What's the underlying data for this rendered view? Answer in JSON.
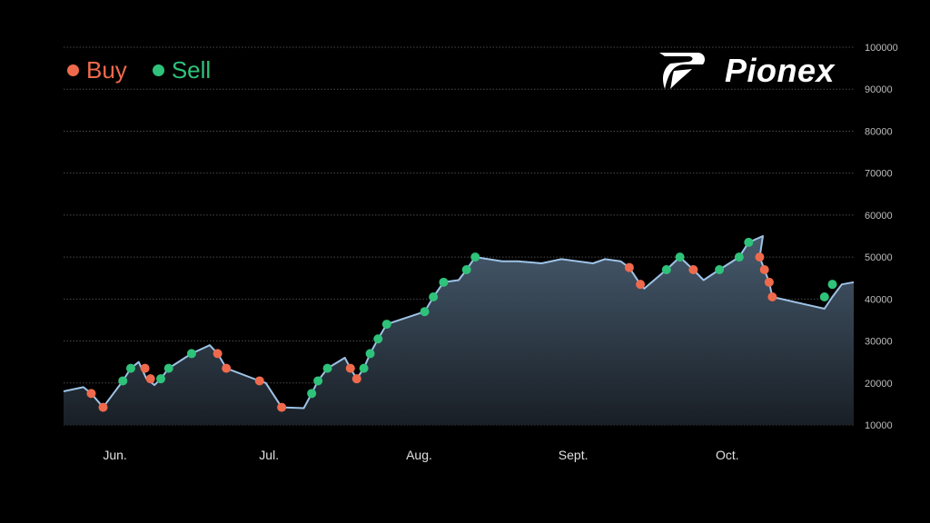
{
  "legend": {
    "buy_label": "Buy",
    "sell_label": "Sell",
    "buy_color": "#ef6a4c",
    "sell_color": "#2fc27a"
  },
  "brand": {
    "name": "Pionex",
    "mark_icon": "pionex-logo-icon"
  },
  "colors": {
    "line": "#9ec3e6",
    "grid": "#4a4a4a",
    "axis_text": "#bdbdbd"
  },
  "chart_data": {
    "type": "line",
    "ylim": [
      10000,
      100000
    ],
    "y_ticks": [
      10000,
      20000,
      30000,
      40000,
      50000,
      60000,
      70000,
      80000,
      90000,
      100000
    ],
    "x_tick_labels": [
      {
        "t": 6.5,
        "label": "Jun."
      },
      {
        "t": 26.0,
        "label": "Jul."
      },
      {
        "t": 45.0,
        "label": "Aug."
      },
      {
        "t": 64.5,
        "label": "Sept."
      },
      {
        "t": 84.0,
        "label": "Oct."
      }
    ],
    "xlim": [
      0,
      100
    ],
    "grid": true,
    "legend_position": "top-left",
    "series": [
      {
        "points": [
          [
            0,
            18000
          ],
          [
            2.5,
            19000
          ],
          [
            3.5,
            17500
          ],
          [
            5,
            14200
          ],
          [
            7.5,
            20500
          ],
          [
            8.5,
            23500
          ],
          [
            9.5,
            25000
          ],
          [
            10.5,
            21000
          ],
          [
            11.5,
            19500
          ],
          [
            12.3,
            21000
          ],
          [
            13.3,
            23500
          ],
          [
            16.2,
            27000
          ],
          [
            18.5,
            29000
          ],
          [
            19.5,
            27000
          ],
          [
            20.6,
            23500
          ],
          [
            24.8,
            20500
          ],
          [
            25.6,
            20000
          ],
          [
            27.6,
            14200
          ],
          [
            30.4,
            14000
          ],
          [
            31.4,
            17500
          ],
          [
            32.2,
            20500
          ],
          [
            33.4,
            23500
          ],
          [
            35.6,
            26000
          ],
          [
            36.3,
            23500
          ],
          [
            37.1,
            21000
          ],
          [
            38,
            23500
          ],
          [
            38.8,
            27000
          ],
          [
            39.8,
            30500
          ],
          [
            40.9,
            34000
          ],
          [
            45.7,
            37000
          ],
          [
            46.8,
            40500
          ],
          [
            48.1,
            44000
          ],
          [
            50,
            44500
          ],
          [
            51,
            47000
          ],
          [
            52.1,
            50000
          ],
          [
            55.5,
            49000
          ],
          [
            57.5,
            49000
          ],
          [
            60.5,
            48500
          ],
          [
            63,
            49500
          ],
          [
            67,
            48500
          ],
          [
            68.5,
            49500
          ],
          [
            70.5,
            49000
          ],
          [
            71.6,
            47500
          ],
          [
            73,
            43500
          ],
          [
            73.5,
            42500
          ],
          [
            76.3,
            47000
          ],
          [
            78,
            50000
          ],
          [
            79.7,
            47000
          ],
          [
            81,
            44500
          ],
          [
            83,
            47000
          ],
          [
            85.5,
            50000
          ],
          [
            86.7,
            53500
          ],
          [
            88.5,
            55000
          ],
          [
            88.1,
            50000
          ],
          [
            88.7,
            47000
          ],
          [
            89.3,
            44000
          ],
          [
            89.7,
            40500
          ],
          [
            96.3,
            37700
          ],
          [
            97.3,
            40500
          ],
          [
            98.5,
            43500
          ],
          [
            100,
            44000
          ]
        ]
      }
    ],
    "buy_points": [
      [
        3.5,
        17500
      ],
      [
        5,
        14200
      ],
      [
        10.3,
        23500
      ],
      [
        11,
        21000
      ],
      [
        19.5,
        27000
      ],
      [
        20.6,
        23500
      ],
      [
        24.8,
        20500
      ],
      [
        27.6,
        14200
      ],
      [
        36.3,
        23500
      ],
      [
        37.1,
        21000
      ],
      [
        71.6,
        47500
      ],
      [
        73,
        43500
      ],
      [
        79.7,
        47000
      ],
      [
        88.1,
        50000
      ],
      [
        88.7,
        47000
      ],
      [
        89.3,
        44000
      ],
      [
        89.7,
        40500
      ]
    ],
    "sell_points": [
      [
        7.5,
        20500
      ],
      [
        8.5,
        23500
      ],
      [
        12.3,
        21000
      ],
      [
        13.3,
        23500
      ],
      [
        16.2,
        27000
      ],
      [
        31.4,
        17500
      ],
      [
        32.2,
        20500
      ],
      [
        33.4,
        23500
      ],
      [
        38,
        23500
      ],
      [
        38.8,
        27000
      ],
      [
        39.8,
        30500
      ],
      [
        40.9,
        34000
      ],
      [
        45.7,
        37000
      ],
      [
        46.8,
        40500
      ],
      [
        48.1,
        44000
      ],
      [
        51,
        47000
      ],
      [
        52.1,
        50000
      ],
      [
        76.3,
        47000
      ],
      [
        78,
        50000
      ],
      [
        83,
        47000
      ],
      [
        85.5,
        50000
      ],
      [
        86.7,
        53500
      ],
      [
        96.3,
        40500
      ],
      [
        97.3,
        43500
      ]
    ]
  }
}
